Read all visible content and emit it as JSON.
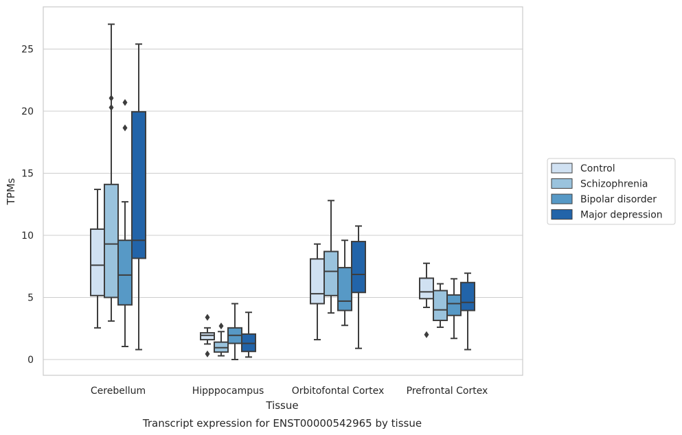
{
  "chart_data": {
    "type": "box",
    "xlabel": "Tissue",
    "ylabel": "TPMs",
    "caption": "Transcript expression for ENST00000542965 by tissue",
    "ylim": [
      -1.3,
      28.5
    ],
    "yticks": [
      "0",
      "5",
      "10",
      "15",
      "20",
      "25"
    ],
    "grid": "horizontal",
    "legend_position": "right",
    "categories": [
      "Cerebellum",
      "Hipppocampus",
      "Orbitofontal Cortex",
      "Prefrontal Cortex"
    ],
    "series": [
      {
        "name": "Control",
        "color": "#d0e1f2",
        "boxes": [
          {
            "whisker_low": 2.55,
            "q1": 5.15,
            "median": 7.6,
            "q3": 10.5,
            "whisker_high": 13.7,
            "outliers": []
          },
          {
            "whisker_low": 1.25,
            "q1": 1.6,
            "median": 1.95,
            "q3": 2.15,
            "whisker_high": 2.55,
            "outliers": [
              0.45,
              3.4
            ]
          },
          {
            "whisker_low": 1.6,
            "q1": 4.5,
            "median": 5.3,
            "q3": 8.1,
            "whisker_high": 9.3,
            "outliers": []
          },
          {
            "whisker_low": 4.2,
            "q1": 4.9,
            "median": 5.45,
            "q3": 6.55,
            "whisker_high": 7.75,
            "outliers": [
              2.0
            ]
          }
        ]
      },
      {
        "name": "Schizophrenia",
        "color": "#9ac3dd",
        "boxes": [
          {
            "whisker_low": 3.1,
            "q1": 5.0,
            "median": 9.3,
            "q3": 14.1,
            "whisker_high": 27.0,
            "outliers": [
              20.3,
              21.05
            ]
          },
          {
            "whisker_low": 0.3,
            "q1": 0.6,
            "median": 0.95,
            "q3": 1.4,
            "whisker_high": 2.25,
            "outliers": [
              2.7
            ]
          },
          {
            "whisker_low": 3.75,
            "q1": 5.15,
            "median": 7.1,
            "q3": 8.7,
            "whisker_high": 12.8,
            "outliers": []
          },
          {
            "whisker_low": 2.6,
            "q1": 3.15,
            "median": 4.0,
            "q3": 5.55,
            "whisker_high": 6.1,
            "outliers": []
          }
        ]
      },
      {
        "name": "Bipolar disorder",
        "color": "#5799c6",
        "boxes": [
          {
            "whisker_low": 1.05,
            "q1": 4.4,
            "median": 6.8,
            "q3": 9.6,
            "whisker_high": 12.7,
            "outliers": [
              18.65,
              20.7
            ]
          },
          {
            "whisker_low": 0.0,
            "q1": 1.3,
            "median": 1.95,
            "q3": 2.55,
            "whisker_high": 4.5,
            "outliers": []
          },
          {
            "whisker_low": 2.75,
            "q1": 3.95,
            "median": 4.7,
            "q3": 7.4,
            "whisker_high": 9.6,
            "outliers": []
          },
          {
            "whisker_low": 1.7,
            "q1": 3.55,
            "median": 4.5,
            "q3": 5.2,
            "whisker_high": 6.5,
            "outliers": []
          }
        ]
      },
      {
        "name": "Major depression",
        "color": "#2264a9",
        "boxes": [
          {
            "whisker_low": 0.8,
            "q1": 8.15,
            "median": 9.6,
            "q3": 19.95,
            "whisker_high": 25.4,
            "outliers": []
          },
          {
            "whisker_low": 0.2,
            "q1": 0.65,
            "median": 1.3,
            "q3": 2.05,
            "whisker_high": 3.8,
            "outliers": []
          },
          {
            "whisker_low": 0.9,
            "q1": 5.4,
            "median": 6.85,
            "q3": 9.5,
            "whisker_high": 10.75,
            "outliers": []
          },
          {
            "whisker_low": 0.8,
            "q1": 3.95,
            "median": 4.6,
            "q3": 6.2,
            "whisker_high": 6.95,
            "outliers": []
          }
        ]
      }
    ]
  }
}
